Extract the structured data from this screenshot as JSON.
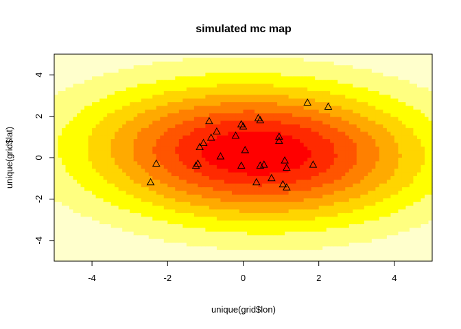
{
  "chart_data": {
    "type": "heatmap",
    "title": "simulated mc map",
    "xlabel": "unique(grid$lon)",
    "ylabel": "unique(grid$lat)",
    "xlim": [
      -5,
      5
    ],
    "ylim": [
      -5,
      5
    ],
    "xticks": [
      -4,
      -2,
      0,
      2,
      4
    ],
    "yticks": [
      -4,
      -2,
      0,
      2,
      4
    ],
    "color_levels": [
      "#FFFFCC",
      "#FFFF80",
      "#FFFF00",
      "#FFD500",
      "#FFAA00",
      "#FF8000",
      "#FF5500",
      "#FF2A00",
      "#FF0000"
    ],
    "surface": {
      "description_free": true,
      "centers": [
        [
          0.3,
          0.5
        ],
        [
          -0.8,
          0.9
        ],
        [
          0.8,
          -0.8
        ],
        [
          1.0,
          0.3
        ]
      ],
      "sigma": [
        2.6,
        1.9
      ]
    },
    "points": [
      [
        -2.45,
        -1.2
      ],
      [
        -2.3,
        -0.3
      ],
      [
        -1.25,
        -0.4
      ],
      [
        -1.2,
        -0.3
      ],
      [
        -1.15,
        0.5
      ],
      [
        -1.05,
        0.7
      ],
      [
        -0.9,
        1.75
      ],
      [
        -0.85,
        0.95
      ],
      [
        -0.7,
        1.25
      ],
      [
        -0.6,
        0.05
      ],
      [
        -0.2,
        1.05
      ],
      [
        -0.05,
        1.6
      ],
      [
        -0.05,
        -0.4
      ],
      [
        0.0,
        1.5
      ],
      [
        0.05,
        0.35
      ],
      [
        0.35,
        -1.2
      ],
      [
        0.4,
        1.9
      ],
      [
        0.45,
        1.8
      ],
      [
        0.45,
        -0.4
      ],
      [
        0.55,
        -0.35
      ],
      [
        0.75,
        -1.0
      ],
      [
        0.95,
        1.0
      ],
      [
        0.95,
        0.8
      ],
      [
        1.05,
        -1.3
      ],
      [
        1.1,
        -0.15
      ],
      [
        1.15,
        -0.5
      ],
      [
        1.15,
        -1.45
      ],
      [
        1.7,
        2.65
      ],
      [
        1.85,
        -0.35
      ],
      [
        2.25,
        2.45
      ]
    ]
  }
}
